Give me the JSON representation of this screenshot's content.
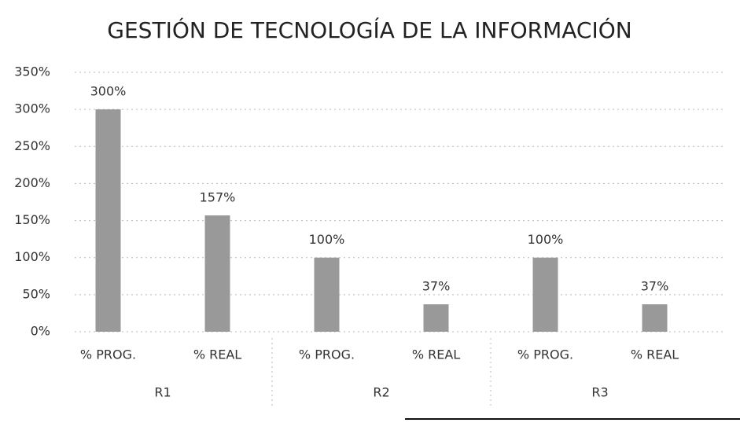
{
  "chart_data": {
    "type": "bar",
    "title": "GESTIÓN DE TECNOLOGÍA DE LA INFORMACIÓN",
    "categories": [
      "% PROG.",
      "% REAL",
      "% PROG.",
      "% REAL",
      "% PROG.",
      "% REAL"
    ],
    "groups": [
      "R1",
      "R2",
      "R3"
    ],
    "values": [
      300,
      157,
      100,
      37,
      100,
      37
    ],
    "value_labels": [
      "300%",
      "157%",
      "100%",
      "37%",
      "100%",
      "37%"
    ],
    "color": "#999999",
    "ylim": [
      0,
      350
    ],
    "yticks": [
      {
        "value": 0,
        "label": "0%"
      },
      {
        "value": 50,
        "label": "50%"
      },
      {
        "value": 100,
        "label": "100%"
      },
      {
        "value": 150,
        "label": "150%"
      },
      {
        "value": 200,
        "label": "200%"
      },
      {
        "value": 250,
        "label": "250%"
      },
      {
        "value": 300,
        "label": "300%"
      },
      {
        "value": 350,
        "label": "350%"
      }
    ],
    "grid": true
  }
}
